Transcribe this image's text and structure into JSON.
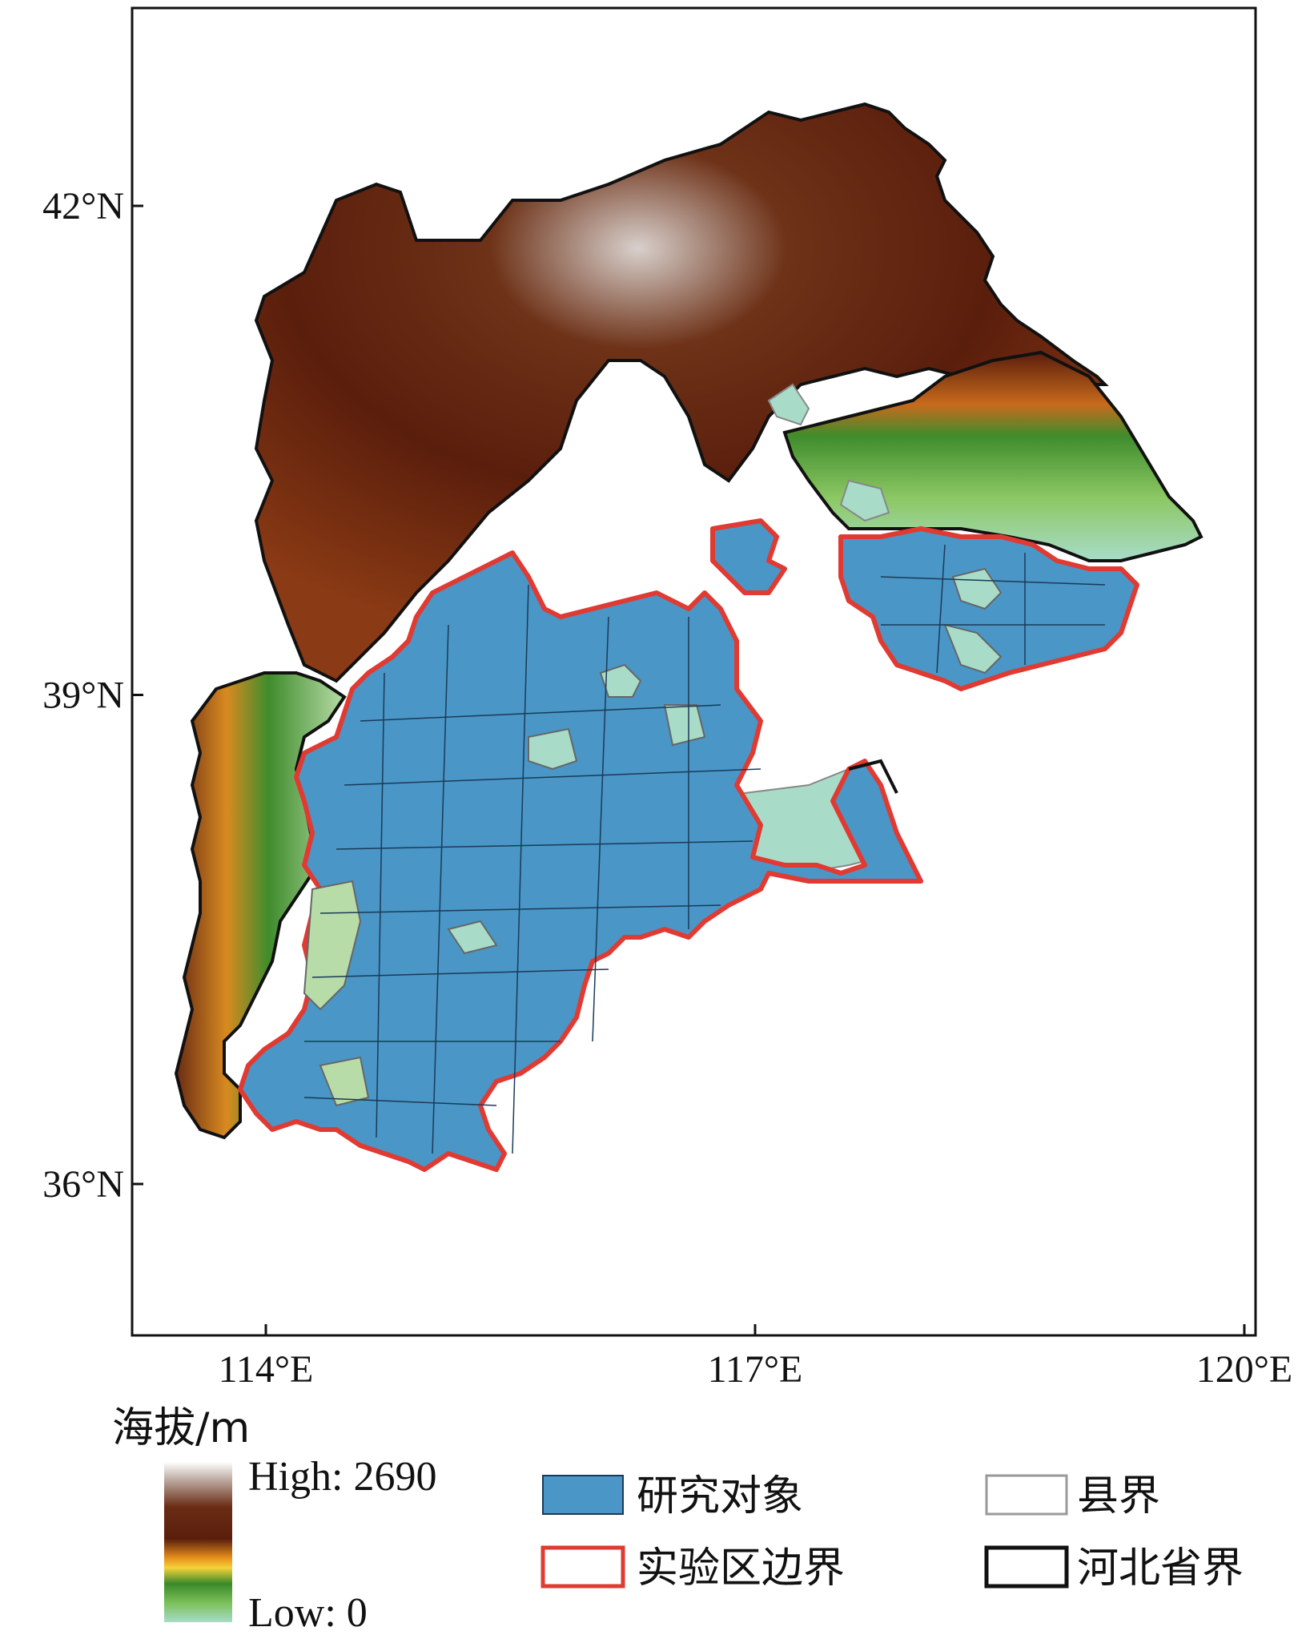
{
  "map": {
    "y_ticks": [
      {
        "label": "42°N",
        "lat": 42
      },
      {
        "label": "39°N",
        "lat": 39
      },
      {
        "label": "36°N",
        "lat": 36
      }
    ],
    "x_ticks": [
      {
        "label": "114°E",
        "lon": 114
      },
      {
        "label": "117°E",
        "lon": 117
      },
      {
        "label": "120°E",
        "lon": 120
      }
    ]
  },
  "legend": {
    "elevation_title": "海拔/m",
    "elevation_high": "High: 2690",
    "elevation_low": "Low: 0",
    "elevation_colors": [
      "#ffffff",
      "#b8a49a",
      "#6a2c14",
      "#5a1e0c",
      "#e8901c",
      "#f5d23a",
      "#3a8a2a",
      "#7cc05a",
      "#a8dcc8"
    ],
    "items": [
      {
        "label": "研究对象",
        "kind": "study-object",
        "fill": "#4a96c6",
        "stroke": "#1a3a58"
      },
      {
        "label": "实验区边界",
        "kind": "experiment-boundary",
        "fill": "none",
        "stroke": "#e03a32"
      },
      {
        "label": "县界",
        "kind": "county-boundary",
        "fill": "none",
        "stroke": "#999999"
      },
      {
        "label": "河北省界",
        "kind": "province-boundary",
        "fill": "none",
        "stroke": "#111111"
      }
    ]
  }
}
